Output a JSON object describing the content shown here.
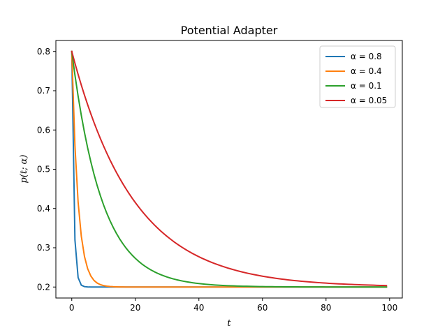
{
  "chart_data": {
    "type": "line",
    "title": "Potential Adapter",
    "xlabel": "t",
    "ylabel": "p(t; α)",
    "xlim": [
      -5,
      104
    ],
    "ylim": [
      0.172,
      0.828
    ],
    "xticks": [
      0,
      20,
      40,
      60,
      80,
      100
    ],
    "yticks": [
      0.2,
      0.3,
      0.4,
      0.5,
      0.6,
      0.7,
      0.8
    ],
    "grid": false,
    "legend_position": "top-right",
    "x": [
      0,
      1,
      2,
      3,
      4,
      5,
      6,
      7,
      8,
      9,
      10,
      11,
      12,
      13,
      14,
      15,
      16,
      17,
      18,
      19,
      20,
      21,
      22,
      23,
      24,
      25,
      26,
      27,
      28,
      29,
      30,
      31,
      32,
      33,
      34,
      35,
      36,
      37,
      38,
      39,
      40,
      41,
      42,
      43,
      44,
      45,
      46,
      47,
      48,
      49,
      50,
      51,
      52,
      53,
      54,
      55,
      56,
      57,
      58,
      59,
      60,
      61,
      62,
      63,
      64,
      65,
      66,
      67,
      68,
      69,
      70,
      71,
      72,
      73,
      74,
      75,
      76,
      77,
      78,
      79,
      80,
      81,
      82,
      83,
      84,
      85,
      86,
      87,
      88,
      89,
      90,
      91,
      92,
      93,
      94,
      95,
      96,
      97,
      98,
      99
    ],
    "series": [
      {
        "name": "α = 0.8",
        "color": "#1f77b4",
        "values": [
          0.8,
          0.32,
          0.224,
          0.2048,
          0.201,
          0.2002,
          0.2,
          0.2,
          0.2,
          0.2,
          0.2,
          0.2,
          0.2,
          0.2,
          0.2,
          0.2,
          0.2,
          0.2,
          0.2,
          0.2,
          0.2,
          0.2,
          0.2,
          0.2,
          0.2,
          0.2,
          0.2,
          0.2,
          0.2,
          0.2,
          0.2,
          0.2,
          0.2,
          0.2,
          0.2,
          0.2,
          0.2,
          0.2,
          0.2,
          0.2,
          0.2,
          0.2,
          0.2,
          0.2,
          0.2,
          0.2,
          0.2,
          0.2,
          0.2,
          0.2,
          0.2,
          0.2,
          0.2,
          0.2,
          0.2,
          0.2,
          0.2,
          0.2,
          0.2,
          0.2,
          0.2,
          0.2,
          0.2,
          0.2,
          0.2,
          0.2,
          0.2,
          0.2,
          0.2,
          0.2,
          0.2,
          0.2,
          0.2,
          0.2,
          0.2,
          0.2,
          0.2,
          0.2,
          0.2,
          0.2,
          0.2,
          0.2,
          0.2,
          0.2,
          0.2,
          0.2,
          0.2,
          0.2,
          0.2,
          0.2,
          0.2,
          0.2,
          0.2,
          0.2,
          0.2,
          0.2,
          0.2,
          0.2,
          0.2,
          0.2
        ]
      },
      {
        "name": "α = 0.4",
        "color": "#ff7f0e",
        "values": [
          0.8,
          0.56,
          0.416,
          0.3296,
          0.2778,
          0.2467,
          0.228,
          0.2168,
          0.2101,
          0.206,
          0.2036,
          0.2022,
          0.2013,
          0.2008,
          0.2005,
          0.2003,
          0.2002,
          0.2001,
          0.2,
          0.2,
          0.2,
          0.2,
          0.2,
          0.2,
          0.2,
          0.2,
          0.2,
          0.2,
          0.2,
          0.2,
          0.2,
          0.2,
          0.2,
          0.2,
          0.2,
          0.2,
          0.2,
          0.2,
          0.2,
          0.2,
          0.2,
          0.2,
          0.2,
          0.2,
          0.2,
          0.2,
          0.2,
          0.2,
          0.2,
          0.2,
          0.2,
          0.2,
          0.2,
          0.2,
          0.2,
          0.2,
          0.2,
          0.2,
          0.2,
          0.2,
          0.2,
          0.2,
          0.2,
          0.2,
          0.2,
          0.2,
          0.2,
          0.2,
          0.2,
          0.2,
          0.2,
          0.2,
          0.2,
          0.2,
          0.2,
          0.2,
          0.2,
          0.2,
          0.2,
          0.2,
          0.2,
          0.2,
          0.2,
          0.2,
          0.2,
          0.2,
          0.2,
          0.2,
          0.2,
          0.2,
          0.2,
          0.2,
          0.2,
          0.2,
          0.2,
          0.2,
          0.2,
          0.2,
          0.2,
          0.2
        ]
      },
      {
        "name": "α = 0.1",
        "color": "#2ca02c",
        "values": [
          0.8,
          0.74,
          0.686,
          0.6374,
          0.5937,
          0.5543,
          0.5189,
          0.487,
          0.4583,
          0.4325,
          0.4092,
          0.3883,
          0.3695,
          0.3525,
          0.3373,
          0.3235,
          0.3112,
          0.3001,
          0.2901,
          0.2811,
          0.273,
          0.2657,
          0.2591,
          0.2532,
          0.2479,
          0.2431,
          0.2388,
          0.2349,
          0.2314,
          0.2283,
          0.2254,
          0.2229,
          0.2206,
          0.2185,
          0.2167,
          0.215,
          0.2135,
          0.2122,
          0.2109,
          0.2098,
          0.2089,
          0.208,
          0.2072,
          0.2065,
          0.2058,
          0.2052,
          0.2047,
          0.2043,
          0.2038,
          0.2034,
          0.2031,
          0.2028,
          0.2025,
          0.2023,
          0.2021,
          0.2019,
          0.2017,
          0.2015,
          0.2014,
          0.2012,
          0.2011,
          0.201,
          0.2009,
          0.2008,
          0.2007,
          0.2006,
          0.2006,
          0.2005,
          0.2005,
          0.2004,
          0.2004,
          0.2004,
          0.2003,
          0.2003,
          0.2003,
          0.2002,
          0.2002,
          0.2002,
          0.2002,
          0.2002,
          0.2001,
          0.2001,
          0.2001,
          0.2001,
          0.2001,
          0.2001,
          0.2001,
          0.2001,
          0.2001,
          0.2001,
          0.2,
          0.2,
          0.2,
          0.2,
          0.2,
          0.2,
          0.2,
          0.2,
          0.2,
          0.2
        ]
      },
      {
        "name": "α = 0.05",
        "color": "#d62728",
        "values": [
          0.8,
          0.77,
          0.7415,
          0.7144,
          0.6887,
          0.6643,
          0.6411,
          0.619,
          0.5981,
          0.5782,
          0.5593,
          0.5413,
          0.5242,
          0.508,
          0.4926,
          0.478,
          0.4641,
          0.4509,
          0.4384,
          0.4264,
          0.4151,
          0.4044,
          0.3941,
          0.3844,
          0.3752,
          0.3665,
          0.3581,
          0.3502,
          0.3427,
          0.3356,
          0.3288,
          0.3224,
          0.3162,
          0.3104,
          0.3049,
          0.2997,
          0.2947,
          0.2899,
          0.2854,
          0.2812,
          0.2771,
          0.2732,
          0.2696,
          0.2661,
          0.2628,
          0.2597,
          0.2567,
          0.2539,
          0.2512,
          0.2486,
          0.2462,
          0.2439,
          0.2417,
          0.2396,
          0.2376,
          0.2357,
          0.2339,
          0.2322,
          0.2306,
          0.2291,
          0.2276,
          0.2262,
          0.2249,
          0.2237,
          0.2225,
          0.2214,
          0.2203,
          0.2193,
          0.2183,
          0.2174,
          0.2165,
          0.2157,
          0.2149,
          0.2142,
          0.2135,
          0.2128,
          0.2122,
          0.2116,
          0.211,
          0.2104,
          0.2099,
          0.2094,
          0.2089,
          0.2085,
          0.2081,
          0.2077,
          0.2073,
          0.2069,
          0.2066,
          0.2062,
          0.2059,
          0.2056,
          0.2053,
          0.2051,
          0.2048,
          0.2046,
          0.2043,
          0.2041,
          0.2039,
          0.2037
        ]
      }
    ]
  }
}
